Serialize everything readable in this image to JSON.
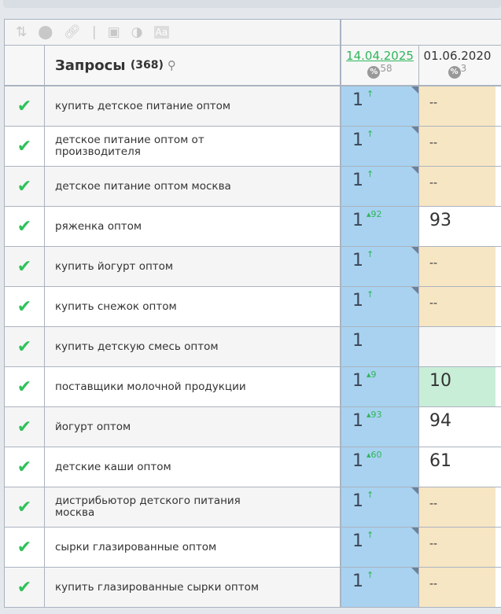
{
  "toolbar": {
    "icons": [
      "sort-icon",
      "toggle-icon",
      "link-icon",
      "window-icon",
      "contrast-icon",
      "font-icon"
    ]
  },
  "header": {
    "title": "Запросы",
    "count": "(368)",
    "dates": [
      {
        "label": "14.04.2025",
        "pct": "58",
        "active": true
      },
      {
        "label": "01.06.2020",
        "pct": "3",
        "active": false
      }
    ]
  },
  "colors": {
    "blue": "#a8d2f0",
    "beige": "#f7e6c4",
    "green": "#c8eed7",
    "check": "#2ec25a",
    "link": "#2fb55a"
  },
  "rows": [
    {
      "query": "купить детское питание оптом",
      "pos": "1",
      "delta": "↑",
      "prev": "--",
      "prev_bg": "beige",
      "tri": true
    },
    {
      "query": "детское питание оптом от производителя",
      "pos": "1",
      "delta": "↑",
      "prev": "--",
      "prev_bg": "beige",
      "tri": true
    },
    {
      "query": "детское питание оптом москва",
      "pos": "1",
      "delta": "↑",
      "prev": "--",
      "prev_bg": "beige",
      "tri": true
    },
    {
      "query": "ряженка оптом",
      "pos": "1",
      "delta": "▴92",
      "prev": "93",
      "prev_bg": "white",
      "tri": false
    },
    {
      "query": "купить йогурт оптом",
      "pos": "1",
      "delta": "↑",
      "prev": "--",
      "prev_bg": "beige",
      "tri": true
    },
    {
      "query": "купить снежок оптом",
      "pos": "1",
      "delta": "↑",
      "prev": "--",
      "prev_bg": "beige",
      "tri": true
    },
    {
      "query": "купить детскую смесь оптом",
      "pos": "1",
      "delta": "",
      "prev": "",
      "prev_bg": "gray",
      "tri": false
    },
    {
      "query": "поставщики молочной продукции",
      "pos": "1",
      "delta": "▴9",
      "prev": "10",
      "prev_bg": "green",
      "tri": false
    },
    {
      "query": "йогурт оптом",
      "pos": "1",
      "delta": "▴93",
      "prev": "94",
      "prev_bg": "white",
      "tri": false
    },
    {
      "query": "детские каши оптом",
      "pos": "1",
      "delta": "▴60",
      "prev": "61",
      "prev_bg": "white",
      "tri": false
    },
    {
      "query": "дистрибьютор детского питания москва",
      "pos": "1",
      "delta": "↑",
      "prev": "--",
      "prev_bg": "beige",
      "tri": true
    },
    {
      "query": "сырки глазированные оптом",
      "pos": "1",
      "delta": "↑",
      "prev": "--",
      "prev_bg": "beige",
      "tri": true
    },
    {
      "query": "купить глазированные сырки оптом",
      "pos": "1",
      "delta": "↑",
      "prev": "--",
      "prev_bg": "beige",
      "tri": true
    }
  ]
}
